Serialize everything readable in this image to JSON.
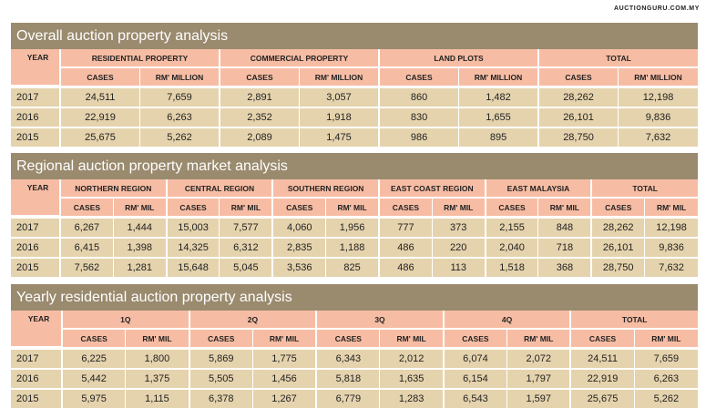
{
  "source": "AUCTIONGURU.COM.MY",
  "tables": [
    {
      "title": "Overall auction property analysis",
      "year_label": "YEAR",
      "groups": [
        {
          "label": "RESIDENTIAL PROPERTY",
          "cols": [
            "CASES",
            "RM' MILLION"
          ]
        },
        {
          "label": "COMMERCIAL PROPERTY",
          "cols": [
            "CASES",
            "RM' MILLION"
          ]
        },
        {
          "label": "LAND PLOTS",
          "cols": [
            "CASES",
            "RM' MILLION"
          ]
        },
        {
          "label": "TOTAL",
          "cols": [
            "CASES",
            "RM' MILLION"
          ]
        }
      ],
      "rows": [
        {
          "year": "2017",
          "values": [
            "24,511",
            "7,659",
            "2,891",
            "3,057",
            "860",
            "1,482",
            "28,262",
            "12,198"
          ]
        },
        {
          "year": "2016",
          "values": [
            "22,919",
            "6,263",
            "2,352",
            "1,918",
            "830",
            "1,655",
            "26,101",
            "9,836"
          ]
        },
        {
          "year": "2015",
          "values": [
            "25,675",
            "5,262",
            "2,089",
            "1,475",
            "986",
            "895",
            "28,750",
            "7,632"
          ]
        }
      ]
    },
    {
      "title": "Regional auction property market analysis",
      "year_label": "YEAR",
      "groups": [
        {
          "label": "NORTHERN REGION",
          "cols": [
            "CASES",
            "RM' MIL"
          ]
        },
        {
          "label": "CENTRAL REGION",
          "cols": [
            "CASES",
            "RM' MIL"
          ]
        },
        {
          "label": "SOUTHERN REGION",
          "cols": [
            "CASES",
            "RM' MIL"
          ]
        },
        {
          "label": "EAST COAST REGION",
          "cols": [
            "CASES",
            "RM' MIL"
          ]
        },
        {
          "label": "EAST MALAYSIA",
          "cols": [
            "CASES",
            "RM' MIL"
          ]
        },
        {
          "label": "TOTAL",
          "cols": [
            "CASES",
            "RM' MIL"
          ]
        }
      ],
      "rows": [
        {
          "year": "2017",
          "values": [
            "6,267",
            "1,444",
            "15,003",
            "7,577",
            "4,060",
            "1,956",
            "777",
            "373",
            "2,155",
            "848",
            "28,262",
            "12,198"
          ]
        },
        {
          "year": "2016",
          "values": [
            "6,415",
            "1,398",
            "14,325",
            "6,312",
            "2,835",
            "1,188",
            "486",
            "220",
            "2,040",
            "718",
            "26,101",
            "9,836"
          ]
        },
        {
          "year": "2015",
          "values": [
            "7,562",
            "1,281",
            "15,648",
            "5,045",
            "3,536",
            "825",
            "486",
            "113",
            "1,518",
            "368",
            "28,750",
            "7,632"
          ]
        }
      ]
    },
    {
      "title": "Yearly residential auction property analysis",
      "year_label": "YEAR",
      "groups": [
        {
          "label": "1Q",
          "cols": [
            "CASES",
            "RM' MIL"
          ]
        },
        {
          "label": "2Q",
          "cols": [
            "CASES",
            "RM' MIL"
          ]
        },
        {
          "label": "3Q",
          "cols": [
            "CASES",
            "RM' MIL"
          ]
        },
        {
          "label": "4Q",
          "cols": [
            "CASES",
            "RM' MIL"
          ]
        },
        {
          "label": "TOTAL",
          "cols": [
            "CASES",
            "RM' MIL"
          ]
        }
      ],
      "rows": [
        {
          "year": "2017",
          "values": [
            "6,225",
            "1,800",
            "5,869",
            "1,775",
            "6,343",
            "2,012",
            "6,074",
            "2,072",
            "24,511",
            "7,659"
          ]
        },
        {
          "year": "2016",
          "values": [
            "5,442",
            "1,375",
            "5,505",
            "1,456",
            "5,818",
            "1,635",
            "6,154",
            "1,797",
            "22,919",
            "6,263"
          ]
        },
        {
          "year": "2015",
          "values": [
            "5,975",
            "1,115",
            "6,378",
            "1,267",
            "6,779",
            "1,283",
            "6,543",
            "1,597",
            "25,675",
            "5,262"
          ]
        }
      ]
    }
  ]
}
